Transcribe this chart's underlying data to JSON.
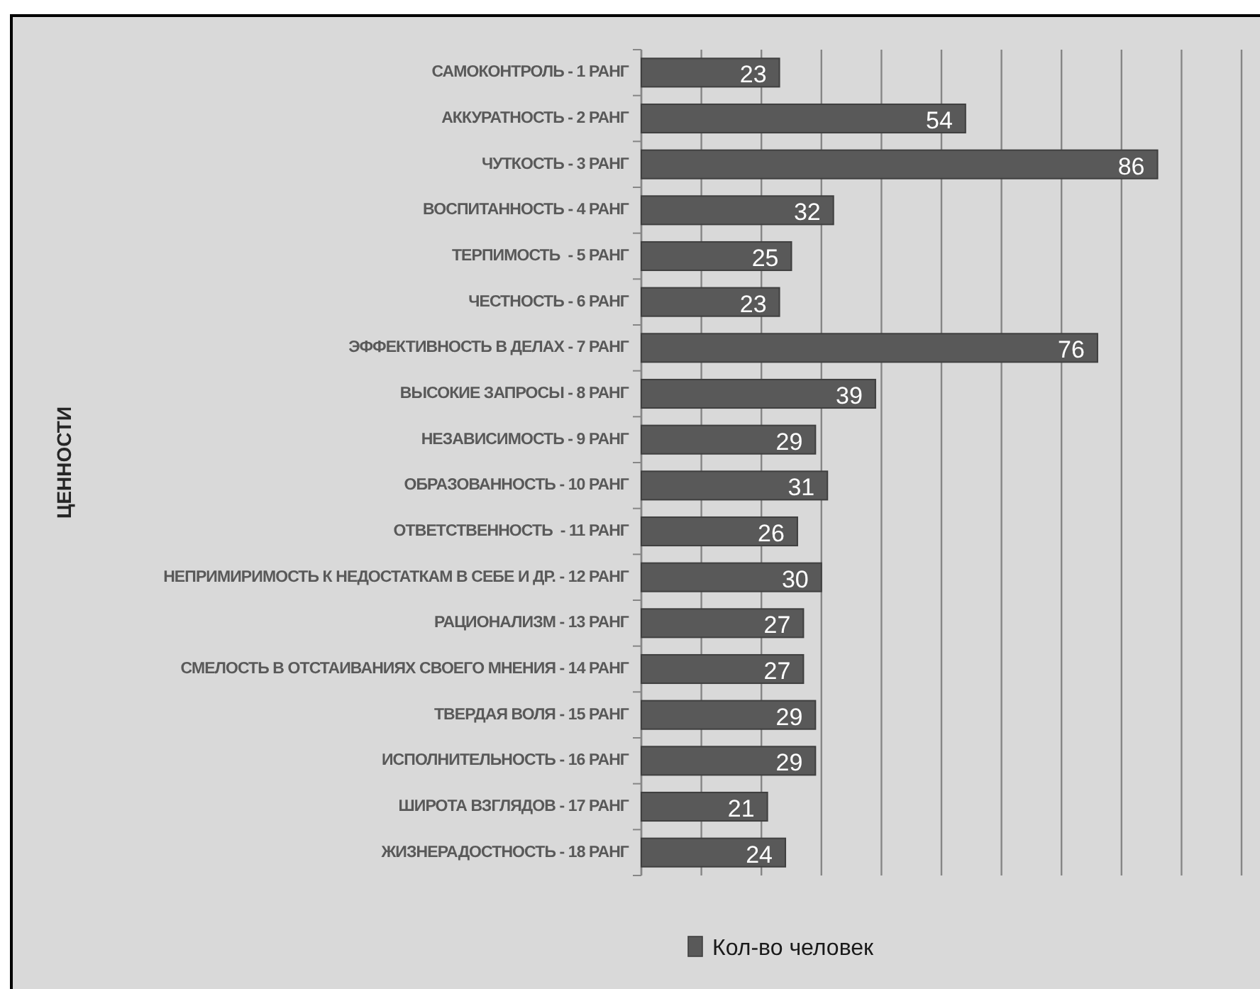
{
  "chart_data": {
    "type": "bar",
    "orientation": "horizontal",
    "ylabel": "ЦЕННОСТИ",
    "categories": [
      "САМОКОНТРОЛЬ - 1 РАНГ",
      "АККУРАТНОСТЬ - 2 РАНГ",
      "ЧУТКОСТЬ - 3 РАНГ",
      "ВОСПИТАННОСТЬ - 4 РАНГ",
      "ТЕРПИМОСТЬ  - 5 РАНГ",
      "ЧЕСТНОСТЬ - 6 РАНГ",
      "ЭФФЕКТИВНОСТЬ В ДЕЛАХ - 7 РАНГ",
      "ВЫСОКИЕ ЗАПРОСЫ - 8 РАНГ",
      "НЕЗАВИСИМОСТЬ - 9 РАНГ",
      "ОБРАЗОВАННОСТЬ - 10 РАНГ",
      "ОТВЕТСТВЕННОСТЬ  - 11 РАНГ",
      "НЕПРИМИРИМОСТЬ К НЕДОСТАТКАМ В СЕБЕ И ДР. - 12 РАНГ",
      "РАЦИОНАЛИЗМ - 13 РАНГ",
      "СМЕЛОСТЬ В ОТСТАИВАНИЯХ СВОЕГО МНЕНИЯ - 14 РАНГ",
      "ТВЕРДАЯ ВОЛЯ - 15 РАНГ",
      "ИСПОЛНИТЕЛЬНОСТЬ - 16 РАНГ",
      "ШИРОТА ВЗГЛЯДОВ - 17 РАНГ",
      "ЖИЗНЕРАДОСТНОСТЬ - 18 РАНГ"
    ],
    "series": [
      {
        "name": "Кол-во человек",
        "color": "#595959",
        "values": [
          23,
          54,
          86,
          32,
          25,
          23,
          76,
          39,
          29,
          31,
          26,
          30,
          27,
          27,
          29,
          29,
          21,
          24
        ]
      }
    ],
    "xlim": [
      0,
      100
    ],
    "xticks": [
      {
        "value": 0,
        "label": null
      },
      {
        "value": 10,
        "label": null
      },
      {
        "value": 20,
        "label": null
      },
      {
        "value": 30,
        "label": null
      },
      {
        "value": 40,
        "label": null
      },
      {
        "value": 50,
        "label": null
      },
      {
        "value": 60,
        "label": null
      },
      {
        "value": 70,
        "label": null
      },
      {
        "value": 80,
        "label": null
      },
      {
        "value": 90,
        "label": null
      },
      {
        "value": 100,
        "label": null
      }
    ],
    "grid": "x",
    "legend": "bottom",
    "tick_labels": "y",
    "data_labels": true
  }
}
